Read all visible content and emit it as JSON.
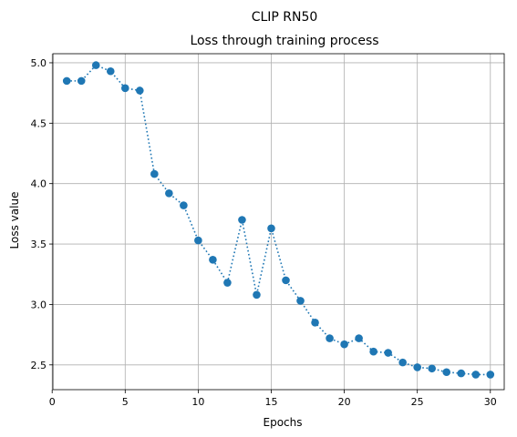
{
  "chart_data": {
    "type": "line",
    "suptitle": "CLIP RN50",
    "title": "Loss through training process",
    "xlabel": "Epochs",
    "ylabel": "Loss value",
    "xlim": [
      0.05,
      30.95
    ],
    "ylim": [
      2.295,
      5.075
    ],
    "xticks": [
      0,
      5,
      10,
      15,
      20,
      25,
      30
    ],
    "xtick_labels": [
      "0",
      "5",
      "10",
      "15",
      "20",
      "25",
      "30"
    ],
    "yticks": [
      2.5,
      3.0,
      3.5,
      4.0,
      4.5,
      5.0
    ],
    "ytick_labels": [
      "2.5",
      "3.0",
      "3.5",
      "4.0",
      "4.5",
      "5.0"
    ],
    "grid": true,
    "line_style": "dotted",
    "marker": "circle",
    "color": "#1f77b4",
    "series": [
      {
        "x": [
          1,
          2,
          3,
          4,
          5,
          6,
          7,
          8,
          9,
          10,
          11,
          12,
          13,
          14,
          15,
          16,
          17,
          18,
          19,
          20,
          21,
          22,
          23,
          24,
          25,
          26,
          27,
          28,
          29,
          30
        ],
        "y": [
          4.85,
          4.85,
          4.98,
          4.93,
          4.79,
          4.77,
          4.08,
          3.92,
          3.82,
          3.53,
          3.37,
          3.18,
          3.7,
          3.08,
          3.63,
          3.2,
          3.03,
          2.85,
          2.72,
          2.67,
          2.72,
          2.61,
          2.6,
          2.52,
          2.48,
          2.47,
          2.44,
          2.43,
          2.42,
          2.42
        ]
      }
    ]
  }
}
